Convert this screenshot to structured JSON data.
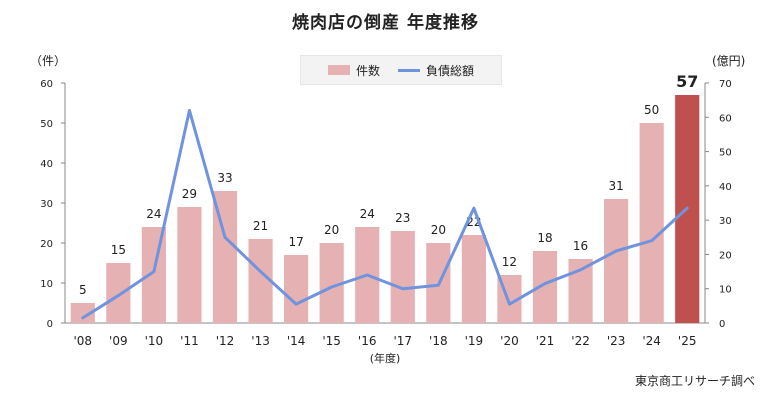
{
  "title": "焼肉店の倒産 年度推移",
  "source": "東京商工リサーチ調べ",
  "legend": {
    "bars_label": "件数",
    "line_label": "負債総額"
  },
  "units": {
    "left": "（件）",
    "right": "(億円)",
    "xaxis": "(年度)"
  },
  "colors": {
    "bar": "#e6b1b3",
    "bar_highlight": "#c0504d",
    "line": "#6f93de"
  },
  "chart_data": {
    "type": "bar",
    "title": "焼肉店の倒産 年度推移",
    "categories": [
      "'08",
      "'09",
      "'10",
      "'11",
      "'12",
      "'13",
      "'14",
      "'15",
      "'16",
      "'17",
      "'18",
      "'19",
      "'20",
      "'21",
      "'22",
      "'23",
      "'24",
      "'25"
    ],
    "series": [
      {
        "name": "件数",
        "type": "bar",
        "axis": "left",
        "values": [
          5,
          15,
          24,
          29,
          33,
          21,
          17,
          20,
          24,
          23,
          20,
          22,
          12,
          18,
          16,
          31,
          50,
          57
        ]
      },
      {
        "name": "負債総額",
        "type": "line",
        "axis": "right",
        "values": [
          1.5,
          8,
          15,
          62,
          25,
          15,
          5.5,
          10.5,
          14,
          10,
          11,
          33.5,
          5.5,
          11.5,
          15.5,
          21,
          24,
          33.5
        ]
      }
    ],
    "ylim_left": [
      0,
      60
    ],
    "yticks_left": [
      0,
      10,
      20,
      30,
      40,
      50,
      60
    ],
    "ylim_right": [
      0,
      70
    ],
    "yticks_right": [
      0,
      10,
      20,
      30,
      40,
      50,
      60,
      70
    ],
    "highlight_index": 17,
    "grid": false,
    "legend_position": "top-center"
  }
}
